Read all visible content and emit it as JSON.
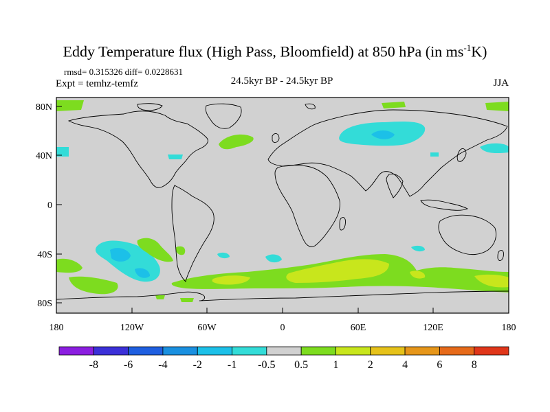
{
  "title": {
    "main_prefix": "Eddy Temperature flux (High Pass, Bloomfield) at 850 hPa (in ms",
    "exponent": "-1",
    "main_suffix": "K)"
  },
  "stats_line": "rmsd= 0.315326 diff= 0.0228631",
  "expt_line": "Expt = temhz-temfz",
  "center_label": "24.5kyr BP - 24.5kyr BP",
  "season": "JJA",
  "y_ticks": [
    "80N",
    "40N",
    "0",
    "40S",
    "80S"
  ],
  "x_ticks": [
    "180",
    "120W",
    "60W",
    "0",
    "60E",
    "120E",
    "180"
  ],
  "colorbar": {
    "labels": [
      "-8",
      "-6",
      "-4",
      "-2",
      "-1",
      "-0.5",
      "0.5",
      "1",
      "2",
      "4",
      "6",
      "8"
    ],
    "colors": [
      "#8b1ee0",
      "#3b30d8",
      "#1f5fe0",
      "#1a90e0",
      "#1cc0e8",
      "#33dcd8",
      "#d1d1d1",
      "#7ddc1f",
      "#c8e61c",
      "#e6c21a",
      "#e6961a",
      "#e66a1a",
      "#e0361a"
    ]
  },
  "colors": {
    "background": "#d1d1d1",
    "positive_weak": "#7ddc1f",
    "positive_mid": "#c8e61c",
    "negative_weak": "#33dcd8",
    "negative_mid": "#1cc0e8"
  }
}
